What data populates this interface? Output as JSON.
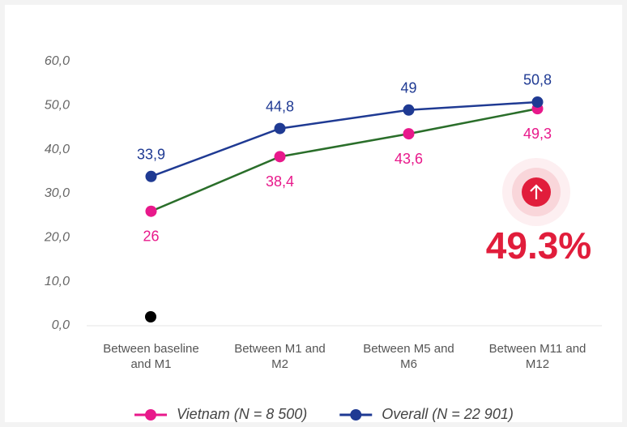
{
  "chart_data": {
    "type": "line",
    "categories": [
      "Between baseline and M1",
      "Between M1 and M2",
      "Between M5 and M6",
      "Between M11 and M12"
    ],
    "series": [
      {
        "name": "Vietnam (N = 8 500)",
        "color": "#e8198b",
        "line_color": "#2a6e2a",
        "values": [
          26,
          38.4,
          43.6,
          49.3
        ],
        "value_labels": [
          "26",
          "38,4",
          "43,6",
          "49,3"
        ],
        "label_position": "below"
      },
      {
        "name": "Overall (N = 22 901)",
        "color": "#1f3a93",
        "line_color": "#1f3a93",
        "values": [
          33.9,
          44.8,
          49,
          50.8
        ],
        "value_labels": [
          "33,9",
          "44,8",
          "49",
          "50,8"
        ],
        "label_position": "above"
      }
    ],
    "ylim": [
      0,
      60
    ],
    "yticks": [
      {
        "value": 0,
        "label": "0,0"
      },
      {
        "value": 10,
        "label": "10,0"
      },
      {
        "value": 20,
        "label": "20,0"
      },
      {
        "value": 30,
        "label": "30,0"
      },
      {
        "value": 40,
        "label": "40,0"
      },
      {
        "value": 50,
        "label": "50,0"
      },
      {
        "value": 60,
        "label": "60,0"
      }
    ],
    "annotation": "49.3%",
    "legend": "bottom"
  }
}
